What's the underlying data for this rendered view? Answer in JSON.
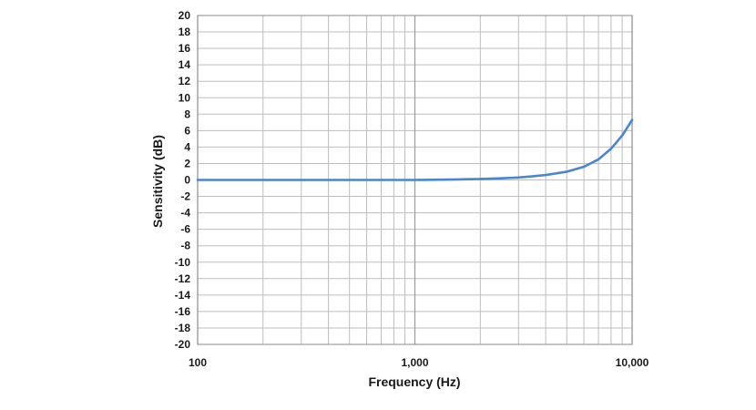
{
  "chart_data": {
    "type": "line",
    "xlabel": "Frequency (Hz)",
    "ylabel": "Sensitivity (dB)",
    "x_scale": "log",
    "xlim": [
      100,
      10000
    ],
    "ylim": [
      -20,
      20
    ],
    "x_ticks": [
      100,
      1000,
      10000
    ],
    "x_tick_labels": [
      "100",
      "1,000",
      "10,000"
    ],
    "y_ticks": [
      20,
      18,
      16,
      14,
      12,
      10,
      8,
      6,
      4,
      2,
      0,
      -2,
      -4,
      -6,
      -8,
      -10,
      -12,
      -14,
      -16,
      -18,
      -20
    ],
    "y_tick_labels": [
      "20",
      "18",
      "16",
      "14",
      "12",
      "10",
      "8",
      "6",
      "4",
      "2",
      "0",
      "-2",
      "-4",
      "-6",
      "-8",
      "-10",
      "-12",
      "-14",
      "-16",
      "-18",
      "-20"
    ],
    "grid": true,
    "line_color": "#4a86d0",
    "series": [
      {
        "x": [
          100,
          200,
          500,
          1000,
          1500,
          2000,
          2500,
          3000,
          3500,
          4000,
          5000,
          6000,
          7000,
          8000,
          9000,
          10000
        ],
        "values": [
          0,
          0,
          0,
          0,
          0.05,
          0.12,
          0.2,
          0.3,
          0.45,
          0.6,
          1.0,
          1.6,
          2.5,
          3.8,
          5.4,
          7.3
        ]
      }
    ]
  }
}
